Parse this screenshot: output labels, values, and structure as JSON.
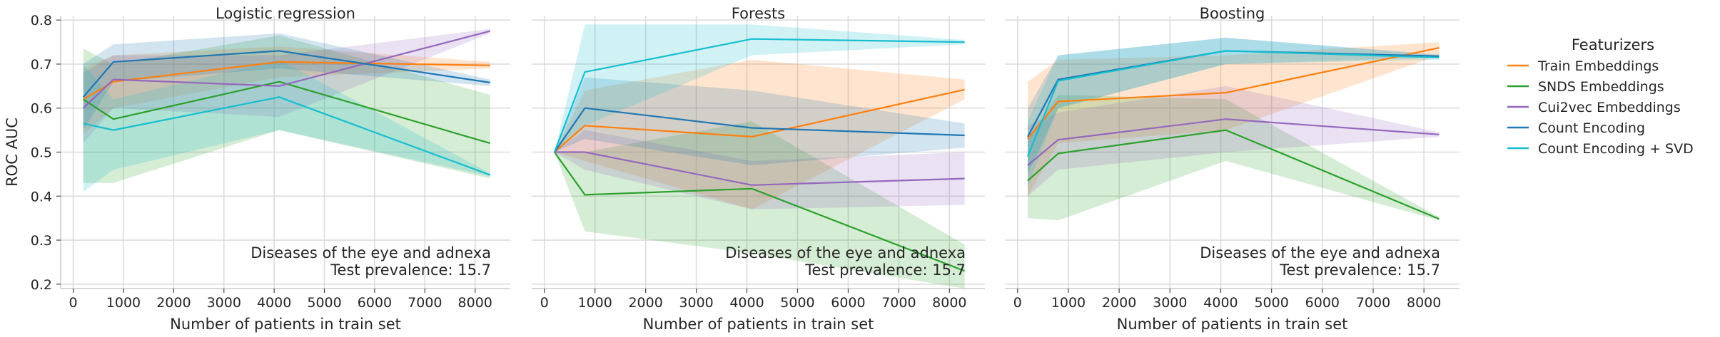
{
  "chart_data": [
    {
      "type": "line",
      "title": "Logistic regression",
      "xlabel": "Number of patients in train set",
      "ylabel": "ROC AUC",
      "annotation": [
        "Diseases of the eye and adnexa",
        "Test prevalence: 15.7"
      ],
      "xlim": [
        -250,
        8700
      ],
      "ylim": [
        0.19,
        0.81
      ],
      "xticks": [
        0,
        1000,
        2000,
        3000,
        4000,
        5000,
        6000,
        7000,
        8000
      ],
      "yticks": [
        0.2,
        0.3,
        0.4,
        0.5,
        0.6,
        0.7,
        0.8
      ],
      "x": [
        200,
        800,
        4100,
        8300
      ],
      "grid": true,
      "series": [
        {
          "name": "Train Embeddings",
          "values": [
            0.62,
            0.66,
            0.705,
            0.697
          ],
          "lower": [
            0.54,
            0.6,
            0.67,
            0.69
          ],
          "upper": [
            0.69,
            0.72,
            0.74,
            0.705
          ]
        },
        {
          "name": "SNDS Embeddings",
          "values": [
            0.62,
            0.575,
            0.66,
            0.52
          ],
          "lower": [
            0.43,
            0.43,
            0.55,
            0.44
          ],
          "upper": [
            0.735,
            0.7,
            0.765,
            0.63
          ]
        },
        {
          "name": "Cui2vec Embeddings",
          "values": [
            0.6,
            0.665,
            0.65,
            0.775
          ],
          "lower": [
            0.52,
            0.6,
            0.58,
            0.77
          ],
          "upper": [
            0.68,
            0.72,
            0.72,
            0.78
          ]
        },
        {
          "name": "Count Encoding",
          "values": [
            0.625,
            0.705,
            0.73,
            0.658
          ],
          "lower": [
            0.55,
            0.66,
            0.69,
            0.65
          ],
          "upper": [
            0.7,
            0.745,
            0.77,
            0.665
          ]
        },
        {
          "name": "Count Encoding + SVD",
          "values": [
            0.565,
            0.55,
            0.625,
            0.448
          ],
          "lower": [
            0.41,
            0.46,
            0.55,
            0.445
          ],
          "upper": [
            0.7,
            0.62,
            0.71,
            0.452
          ]
        }
      ]
    },
    {
      "type": "line",
      "title": "Forests",
      "xlabel": "Number of patients in train set",
      "annotation": [
        "Diseases of the eye and adnexa",
        "Test prevalence: 15.7"
      ],
      "xlim": [
        -250,
        8700
      ],
      "ylim": [
        0.19,
        0.81
      ],
      "xticks": [
        0,
        1000,
        2000,
        3000,
        4000,
        5000,
        6000,
        7000,
        8000
      ],
      "yticks": [
        0.2,
        0.3,
        0.4,
        0.5,
        0.6,
        0.7,
        0.8
      ],
      "x": [
        200,
        800,
        4100,
        8300
      ],
      "grid": true,
      "series": [
        {
          "name": "Train Embeddings",
          "values": [
            0.5,
            0.56,
            0.535,
            0.642
          ],
          "lower": [
            0.5,
            0.48,
            0.37,
            0.62
          ],
          "upper": [
            0.5,
            0.64,
            0.71,
            0.665
          ]
        },
        {
          "name": "SNDS Embeddings",
          "values": [
            0.5,
            0.403,
            0.417,
            0.23
          ],
          "lower": [
            0.5,
            0.32,
            0.27,
            0.19
          ],
          "upper": [
            0.5,
            0.5,
            0.57,
            0.29
          ]
        },
        {
          "name": "Cui2vec Embeddings",
          "values": [
            0.5,
            0.5,
            0.425,
            0.44
          ],
          "lower": [
            0.5,
            0.46,
            0.37,
            0.38
          ],
          "upper": [
            0.5,
            0.55,
            0.48,
            0.5
          ]
        },
        {
          "name": "Count Encoding",
          "values": [
            0.5,
            0.6,
            0.555,
            0.538
          ],
          "lower": [
            0.5,
            0.53,
            0.47,
            0.51
          ],
          "upper": [
            0.5,
            0.67,
            0.64,
            0.565
          ]
        },
        {
          "name": "Count Encoding + SVD",
          "values": [
            0.5,
            0.682,
            0.757,
            0.75
          ],
          "lower": [
            0.5,
            0.56,
            0.72,
            0.745
          ],
          "upper": [
            0.5,
            0.79,
            0.79,
            0.755
          ]
        }
      ]
    },
    {
      "type": "line",
      "title": "Boosting",
      "xlabel": "Number of patients in train set",
      "annotation": [
        "Diseases of the eye and adnexa",
        "Test prevalence: 15.7"
      ],
      "xlim": [
        -250,
        8700
      ],
      "ylim": [
        0.19,
        0.81
      ],
      "xticks": [
        0,
        1000,
        2000,
        3000,
        4000,
        5000,
        6000,
        7000,
        8000
      ],
      "yticks": [
        0.2,
        0.3,
        0.4,
        0.5,
        0.6,
        0.7,
        0.8
      ],
      "x": [
        200,
        800,
        4100,
        8300
      ],
      "grid": true,
      "series": [
        {
          "name": "Train Embeddings",
          "values": [
            0.53,
            0.615,
            0.635,
            0.737
          ],
          "lower": [
            0.4,
            0.52,
            0.55,
            0.72
          ],
          "upper": [
            0.66,
            0.71,
            0.72,
            0.75
          ]
        },
        {
          "name": "SNDS Embeddings",
          "values": [
            0.435,
            0.497,
            0.55,
            0.348
          ],
          "lower": [
            0.35,
            0.345,
            0.48,
            0.345
          ],
          "upper": [
            0.53,
            0.63,
            0.62,
            0.352
          ]
        },
        {
          "name": "Cui2vec Embeddings",
          "values": [
            0.47,
            0.528,
            0.575,
            0.54
          ],
          "lower": [
            0.4,
            0.46,
            0.5,
            0.535
          ],
          "upper": [
            0.56,
            0.59,
            0.65,
            0.545
          ]
        },
        {
          "name": "Count Encoding",
          "values": [
            0.535,
            0.665,
            0.73,
            0.718
          ],
          "lower": [
            0.45,
            0.6,
            0.7,
            0.715
          ],
          "upper": [
            0.6,
            0.72,
            0.76,
            0.722
          ]
        },
        {
          "name": "Count Encoding + SVD",
          "values": [
            0.49,
            0.662,
            0.73,
            0.715
          ],
          "lower": [
            0.42,
            0.6,
            0.7,
            0.71
          ],
          "upper": [
            0.57,
            0.72,
            0.76,
            0.72
          ]
        }
      ]
    }
  ],
  "legend": {
    "title": "Featurizers",
    "placement": "right",
    "items": [
      {
        "label": "Train Embeddings",
        "color": "#ff7f0e"
      },
      {
        "label": "SNDS Embeddings",
        "color": "#2ca02c"
      },
      {
        "label": "Cui2vec Embeddings",
        "color": "#9467bd"
      },
      {
        "label": "Count Encoding",
        "color": "#1f77b4"
      },
      {
        "label": "Count Encoding + SVD",
        "color": "#17becf"
      }
    ]
  }
}
